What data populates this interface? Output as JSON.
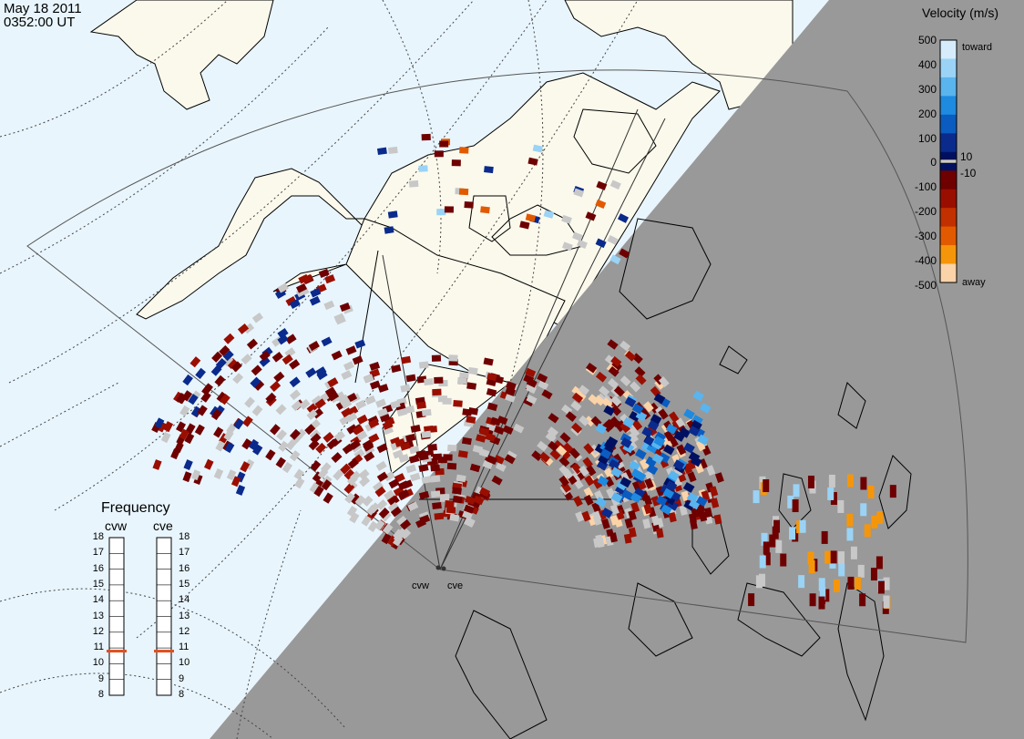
{
  "header": {
    "date": "May 18 2011",
    "time": "0352:00 UT"
  },
  "colorbar": {
    "title": "Velocity (m/s)",
    "ticks": [
      "500",
      "400",
      "300",
      "200",
      "100",
      "10",
      "0",
      "-10",
      "-100",
      "-200",
      "-300",
      "-400",
      "-500"
    ],
    "toward_label": "toward",
    "away_label": "away",
    "ground_scatter_color": "#c8c8c8",
    "colors": [
      "#d6ecfb",
      "#9ad3f6",
      "#5ab4ee",
      "#1e8ae0",
      "#0a5cc0",
      "#0a2a8c",
      "#001060",
      "#6e0000",
      "#9a0e00",
      "#c23000",
      "#e25a00",
      "#f5960a",
      "#fbd3a8"
    ]
  },
  "frequency": {
    "title": "Frequency",
    "radars": [
      {
        "name": "cvw",
        "value": 10.8
      },
      {
        "name": "cve",
        "value": 10.8
      }
    ],
    "scale": [
      "18",
      "17",
      "16",
      "15",
      "14",
      "13",
      "12",
      "11",
      "10",
      "9",
      "8"
    ],
    "marker_color": "#e0501e"
  },
  "radar_labels": [
    "cvw",
    "cve"
  ],
  "colors": {
    "ocean_day": "#e8f5fd",
    "land_day": "#fbf9ec",
    "night": "#999999",
    "coast": "#000000"
  }
}
